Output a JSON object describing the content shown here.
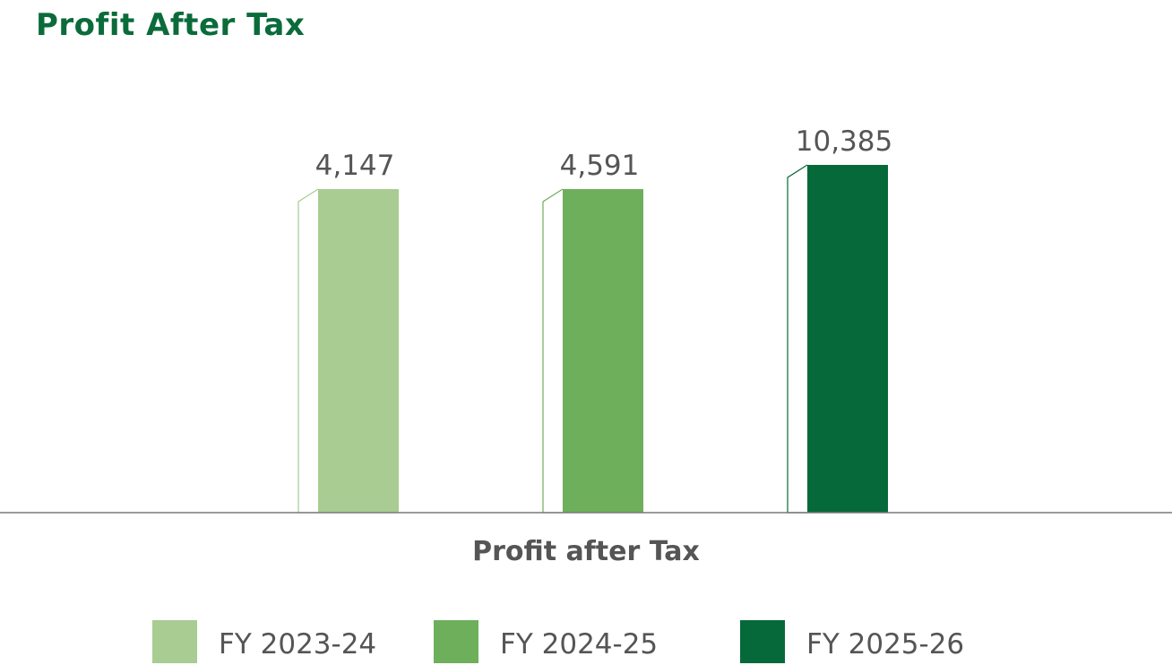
{
  "page": {
    "title": "Profit After Tax"
  },
  "chart_data": {
    "type": "bar",
    "title": "Profit After Tax",
    "xlabel": "Profit after Tax",
    "ylabel": "",
    "categories": [
      "Profit after Tax"
    ],
    "series": [
      {
        "name": "FY 2023-24",
        "values": [
          4147
        ],
        "label": "4,147",
        "color": "#a8cc92"
      },
      {
        "name": "FY 2024-25",
        "values": [
          4591
        ],
        "label": "4,591",
        "color": "#6eaf5b"
      },
      {
        "name": "FY 2025-26",
        "values": [
          10385
        ],
        "label": "10,385",
        "color": "#06693a"
      }
    ],
    "legend": "bottom",
    "grid": false,
    "data_labels": true
  }
}
